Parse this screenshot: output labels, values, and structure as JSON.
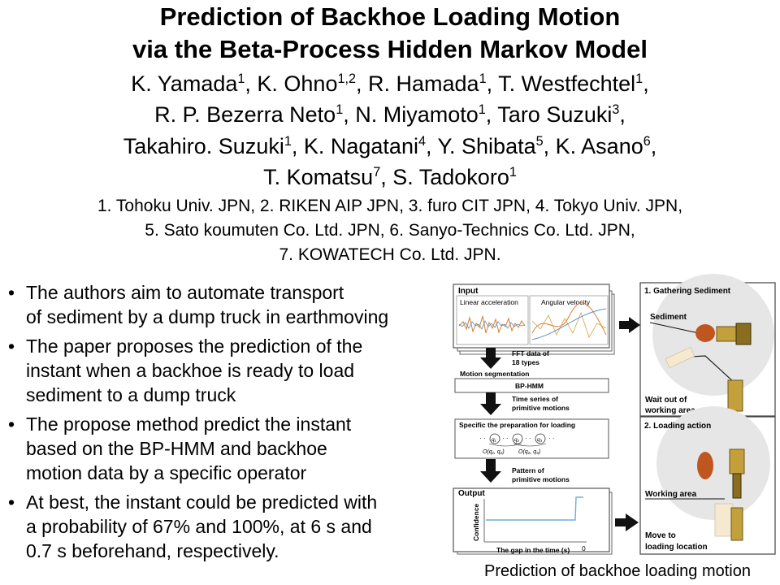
{
  "title": {
    "line1": "Prediction of Backhoe Loading Motion",
    "line2": "via the Beta-Process Hidden Markov Model"
  },
  "authors": [
    [
      {
        "n": "K. Yamada",
        "s": "1"
      },
      {
        "n": "K. Ohno",
        "s": "1,2"
      },
      {
        "n": "R. Hamada",
        "s": "1"
      },
      {
        "n": "T. Westfechtel",
        "s": "1"
      }
    ],
    [
      {
        "n": "R. P. Bezerra Neto",
        "s": "1"
      },
      {
        "n": "N. Miyamoto",
        "s": "1"
      },
      {
        "n": "Taro Suzuki",
        "s": "3"
      }
    ],
    [
      {
        "n": "Takahiro. Suzuki",
        "s": "1"
      },
      {
        "n": "K. Nagatani",
        "s": "4"
      },
      {
        "n": "Y. Shibata",
        "s": "5"
      },
      {
        "n": "K. Asano",
        "s": "6"
      }
    ],
    [
      {
        "n": "T. Komatsu",
        "s": "7"
      },
      {
        "n": "S. Tadokoro",
        "s": "1"
      }
    ]
  ],
  "affiliations": {
    "line1": "1. Tohoku Univ. JPN, 2. RIKEN AIP JPN, 3. furo CIT JPN, 4. Tokyo Univ. JPN,",
    "line2": "5. Sato koumuten Co. Ltd. JPN, 6. Sanyo-Technics Co. Ltd. JPN,",
    "line3": "7. KOWATECH Co. Ltd. JPN."
  },
  "bullets": [
    [
      "The authors aim to automate transport",
      "of sediment by a dump truck in earthmoving"
    ],
    [
      "The paper proposes the prediction of the",
      "instant when a backhoe is ready to load",
      "sediment to a dump truck"
    ],
    [
      "The propose method predict the instant",
      "based on the BP-HMM and backhoe",
      "motion data by a specific operator"
    ],
    [
      "At best, the instant could be predicted with",
      "a probability of 67% and 100%, at 6 s and",
      "0.7 s beforehand, respectively."
    ]
  ],
  "figure": {
    "input_label": "Input",
    "linear_acc": "Linear acceleration",
    "angular_vel": "Angular velocity",
    "fft_line1": "FFT data of",
    "fft_line2": "18 types",
    "motion_seg": "Motion segmentation",
    "bphmm": "BP-HMM",
    "ts_line1": "Time series of",
    "ts_line2": "primitive motions",
    "specific": "Specific the preparation for loading",
    "o1": "O(q₁, q₂)",
    "o2": "O(q₂, q₃)",
    "pat_line1": "Pattern of",
    "pat_line2": "primitive motions",
    "output_label": "Output",
    "confidence": "Confidence",
    "gap": "The gap in the time (s)",
    "zero": "0",
    "gathering": "1. Gathering Sediment",
    "sediment": "Sediment",
    "wait_line1": "Wait out of",
    "wait_line2": "working area",
    "loading_action": "2. Loading action",
    "working_area": "Working area",
    "move_line1": "Move to",
    "move_line2": "loading location",
    "caption": "Prediction of backhoe loading motion"
  }
}
